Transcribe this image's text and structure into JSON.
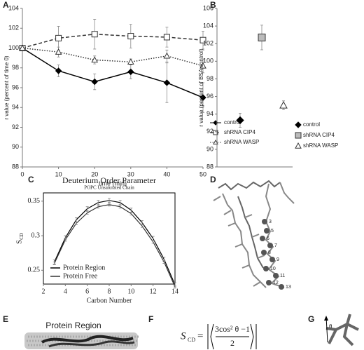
{
  "chart_data": [
    {
      "type": "line",
      "ylabel": "r value (percent of time 0)",
      "xlabel": "time (min)",
      "x": [
        0,
        10,
        20,
        30,
        40,
        50
      ],
      "xlim": [
        0,
        50
      ],
      "xticks": [
        0,
        10,
        20,
        30,
        40,
        50
      ],
      "ylim": [
        88,
        104
      ],
      "yticks": [
        88,
        90,
        92,
        94,
        96,
        98,
        100,
        102,
        104
      ],
      "series": [
        {
          "name": "control",
          "color": "#000000",
          "fill": "#000000",
          "marker": "diamond",
          "dash": "solid",
          "values": [
            100,
            97.7,
            96.6,
            97.6,
            96.5,
            95.0
          ],
          "errors": [
            0,
            0.6,
            0.8,
            0.7,
            2.0,
            1.5
          ]
        },
        {
          "name": "shRNA CIP4",
          "color": "#333333",
          "fill": "#ffffff",
          "marker": "square",
          "dash": "dashed",
          "values": [
            100,
            101.0,
            101.4,
            101.2,
            101.1,
            100.8
          ],
          "errors": [
            0,
            1.2,
            1.5,
            1.2,
            1.0,
            0.9
          ]
        },
        {
          "name": "shRNA WASP",
          "color": "#333333",
          "fill": "#ffffff",
          "marker": "triangle",
          "dash": "dotted",
          "values": [
            100,
            99.6,
            98.8,
            98.6,
            99.2,
            98.2
          ],
          "errors": [
            0,
            0.5,
            0.4,
            0.3,
            0.6,
            0.7
          ]
        }
      ]
    },
    {
      "type": "dot",
      "ylabel": "r value (percent of BSA control)",
      "ylim": [
        88,
        106
      ],
      "yticks": [
        88,
        90,
        92,
        94,
        96,
        98,
        100,
        102,
        104,
        106
      ],
      "series": [
        {
          "name": "control",
          "color": "#000000",
          "fill": "#000000",
          "marker": "diamond",
          "values": [
            93.3
          ],
          "errors": [
            0.8
          ]
        },
        {
          "name": "shRNA CIP4",
          "color": "#333333",
          "fill": "#bbbbbb",
          "marker": "square",
          "values": [
            102.7
          ],
          "errors": [
            1.4
          ]
        },
        {
          "name": "shRNA WASP",
          "color": "#333333",
          "fill": "#ffffff",
          "marker": "triangle",
          "values": [
            95.0
          ],
          "errors": [
            0.5
          ]
        }
      ]
    },
    {
      "type": "line",
      "title": "Deuterium Order Parameter",
      "subtitle": "POPC Unsaturated Chain",
      "ylabel": "S",
      "ylabel_sub": "CD",
      "xlabel": "Carbon Number",
      "x": [
        3,
        4,
        5,
        6,
        7,
        8,
        9,
        10,
        11,
        12,
        13,
        14
      ],
      "xlim": [
        2,
        14
      ],
      "xticks": [
        2,
        4,
        6,
        8,
        10,
        12,
        14
      ],
      "ylim": [
        0.23,
        0.362
      ],
      "yticks": [
        0.25,
        0.3,
        0.35
      ],
      "frame": true,
      "series": [
        {
          "name": "Protein Region",
          "color": "#000000",
          "dash": "solid",
          "values": [
            0.262,
            0.297,
            0.323,
            0.339,
            0.348,
            0.351,
            0.348,
            0.337,
            0.319,
            0.296,
            0.266,
            0.229
          ],
          "errors": [
            0.003,
            0.003,
            0.003,
            0.003,
            0.003,
            0.003,
            0.003,
            0.003,
            0.003,
            0.003,
            0.003,
            0.003
          ]
        },
        {
          "name": "Protein Free",
          "color": "#333333",
          "dash": "solid",
          "values": [
            0.26,
            0.294,
            0.318,
            0.333,
            0.342,
            0.345,
            0.342,
            0.332,
            0.314,
            0.291,
            0.262,
            0.226
          ],
          "errors": [
            0.002,
            0.002,
            0.002,
            0.002,
            0.002,
            0.002,
            0.002,
            0.002,
            0.002,
            0.002,
            0.002,
            0.002
          ]
        }
      ]
    }
  ],
  "panels": {
    "letters": [
      "A",
      "B",
      "C",
      "D",
      "E",
      "F",
      "G"
    ],
    "d_labels": [
      "3",
      "5",
      "6",
      "7",
      "8",
      "9",
      "10",
      "11",
      "12",
      "13"
    ],
    "e_title": "Protein Region",
    "f_equation": {
      "lhs": "S",
      "lhs_sub": "CD",
      "numerator": "3cos² θ −1",
      "denominator": "2"
    },
    "g_label": "θ"
  }
}
